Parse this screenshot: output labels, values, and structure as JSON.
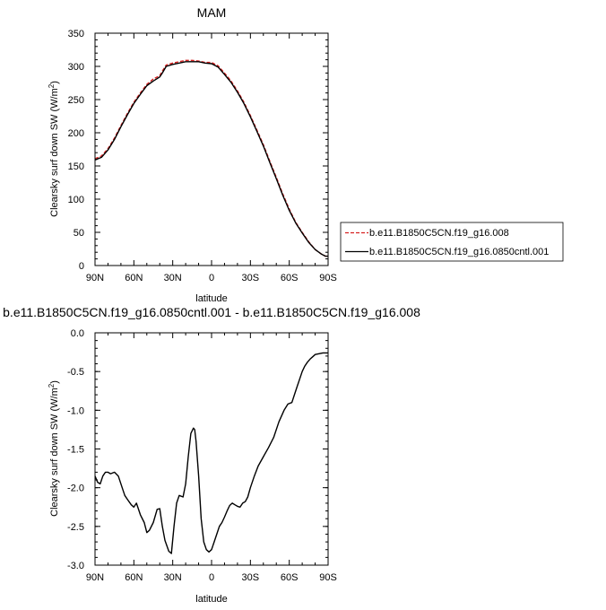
{
  "chart_data": [
    {
      "type": "line",
      "title": "MAM",
      "xlabel": "latitude",
      "ylabel": "Clearsky surf down SW (W/m²)",
      "xlim": [
        90,
        -90
      ],
      "ylim": [
        0,
        350
      ],
      "x_ticks": [
        90,
        60,
        30,
        0,
        -30,
        -60,
        -90
      ],
      "x_tick_labels": [
        "90N",
        "60N",
        "30N",
        "0",
        "30S",
        "60S",
        "90S"
      ],
      "y_ticks": [
        0,
        50,
        100,
        150,
        200,
        250,
        300,
        350
      ],
      "y_tick_labels": [
        "0",
        "50",
        "100",
        "150",
        "200",
        "250",
        "300",
        "350"
      ],
      "grid": false,
      "legend_position": "right",
      "series": [
        {
          "name": "b.e11.B1850C5CN.f19_g16.008",
          "color": "#d62020",
          "dash": "dashed",
          "x": [
            90,
            85,
            80,
            75,
            70,
            65,
            60,
            55,
            50,
            45,
            40,
            38,
            35,
            30,
            25,
            20,
            15,
            10,
            5,
            0,
            -5,
            -10,
            -15,
            -20,
            -25,
            -30,
            -35,
            -40,
            -45,
            -50,
            -55,
            -60,
            -65,
            -70,
            -75,
            -80,
            -85,
            -88,
            -90
          ],
          "y": [
            161,
            165,
            176,
            192,
            211,
            229,
            246,
            260,
            273,
            281,
            286,
            293,
            302,
            305,
            307,
            309,
            309,
            308,
            306,
            306,
            301,
            290,
            278,
            263,
            246,
            226,
            204,
            182,
            157,
            133,
            108,
            85,
            65,
            50,
            36,
            24,
            17,
            14,
            14
          ]
        },
        {
          "name": "b.e11.B1850C5CN.f19_g16.0850cntl.001",
          "color": "#000000",
          "dash": "solid",
          "x": [
            90,
            85,
            80,
            75,
            70,
            65,
            60,
            55,
            50,
            45,
            40,
            38,
            35,
            30,
            25,
            20,
            15,
            10,
            5,
            0,
            -5,
            -10,
            -15,
            -20,
            -25,
            -30,
            -35,
            -40,
            -45,
            -50,
            -55,
            -60,
            -65,
            -70,
            -75,
            -80,
            -85,
            -88,
            -90
          ],
          "y": [
            159,
            163,
            174,
            190,
            209,
            227,
            244,
            258,
            271,
            278,
            284,
            290,
            300,
            303,
            305,
            307,
            307,
            307,
            305,
            304,
            299,
            288,
            276,
            261,
            244,
            224,
            202,
            180,
            155,
            131,
            106,
            83,
            64,
            49,
            35,
            24,
            17,
            14,
            14
          ]
        }
      ]
    },
    {
      "type": "line",
      "title": "b.e11.B1850C5CN.f19_g16.0850cntl.001 - b.e11.B1850C5CN.f19_g16.008",
      "xlabel": "latitude",
      "ylabel": "Clearsky surf down SW (W/m²)",
      "xlim": [
        90,
        -90
      ],
      "ylim": [
        -3.0,
        0.0
      ],
      "x_ticks": [
        90,
        60,
        30,
        0,
        -30,
        -60,
        -90
      ],
      "x_tick_labels": [
        "90N",
        "60N",
        "30N",
        "0",
        "30S",
        "60S",
        "90S"
      ],
      "y_ticks": [
        0.0,
        -0.5,
        -1.0,
        -1.5,
        -2.0,
        -2.5,
        -3.0
      ],
      "y_tick_labels": [
        "0.0",
        "-0.5",
        "-1.0",
        "-1.5",
        "-2.0",
        "-2.5",
        "-3.0"
      ],
      "grid": false,
      "series": [
        {
          "color": "#000000",
          "dash": "solid",
          "x": [
            90,
            88,
            86,
            84,
            82,
            80,
            78,
            75,
            72,
            69,
            67,
            65,
            62,
            60,
            58,
            55,
            52,
            50,
            48,
            45,
            42,
            40,
            38,
            36,
            33,
            31,
            29,
            27,
            25,
            22,
            20,
            18,
            16,
            14,
            13,
            12,
            10,
            8,
            6,
            4,
            2,
            0,
            -2,
            -4,
            -6,
            -8,
            -10,
            -12,
            -14,
            -16,
            -18,
            -20,
            -22,
            -24,
            -26,
            -28,
            -30,
            -33,
            -36,
            -40,
            -44,
            -48,
            -52,
            -56,
            -59,
            -62,
            -64,
            -66,
            -68,
            -70,
            -72,
            -74,
            -76,
            -78,
            -80,
            -83,
            -86,
            -88,
            -90
          ],
          "y": [
            -1.85,
            -1.93,
            -1.95,
            -1.85,
            -1.8,
            -1.8,
            -1.82,
            -1.8,
            -1.85,
            -2.0,
            -2.1,
            -2.15,
            -2.22,
            -2.25,
            -2.2,
            -2.35,
            -2.45,
            -2.58,
            -2.55,
            -2.45,
            -2.28,
            -2.27,
            -2.5,
            -2.68,
            -2.82,
            -2.85,
            -2.5,
            -2.2,
            -2.1,
            -2.12,
            -1.95,
            -1.6,
            -1.3,
            -1.23,
            -1.25,
            -1.4,
            -1.85,
            -2.4,
            -2.7,
            -2.8,
            -2.83,
            -2.8,
            -2.7,
            -2.6,
            -2.5,
            -2.45,
            -2.38,
            -2.3,
            -2.23,
            -2.2,
            -2.22,
            -2.24,
            -2.25,
            -2.2,
            -2.18,
            -2.12,
            -2.0,
            -1.85,
            -1.72,
            -1.6,
            -1.48,
            -1.35,
            -1.15,
            -1.0,
            -0.92,
            -0.9,
            -0.8,
            -0.7,
            -0.6,
            -0.5,
            -0.43,
            -0.38,
            -0.34,
            -0.31,
            -0.28,
            -0.27,
            -0.26,
            -0.26,
            -0.26
          ]
        }
      ]
    }
  ]
}
